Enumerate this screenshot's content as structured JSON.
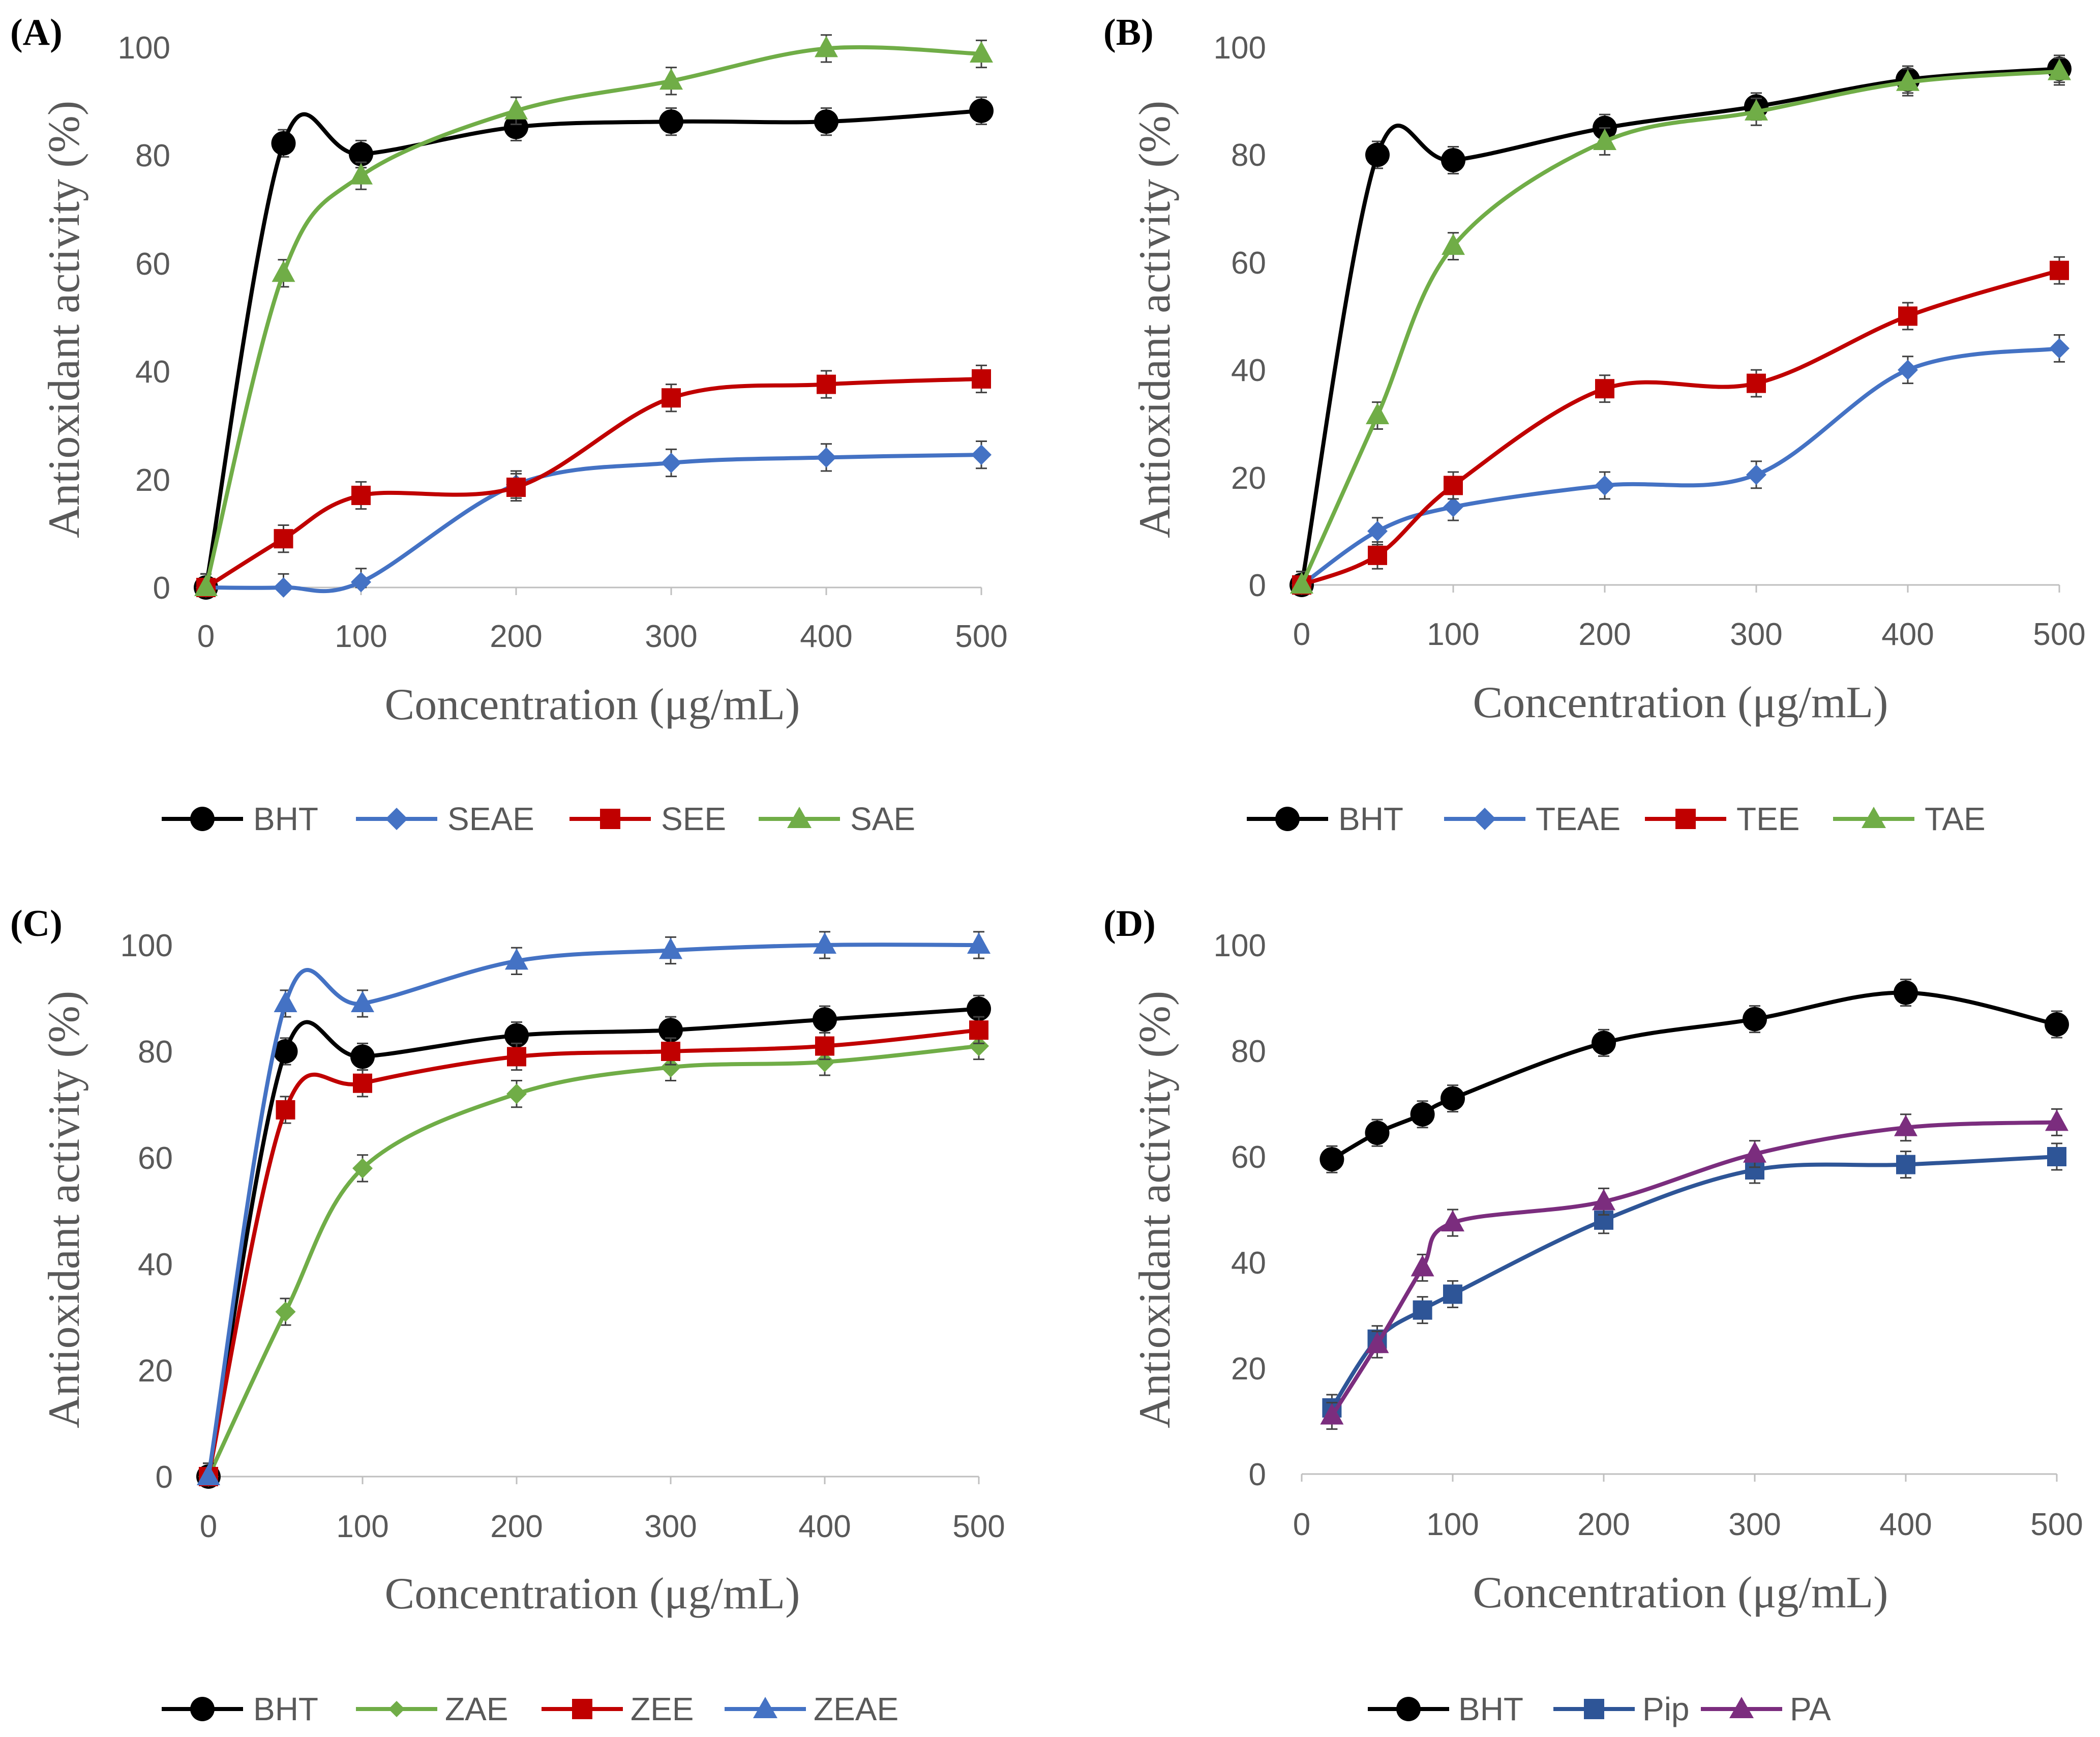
{
  "chart_data": [
    {
      "type": "line",
      "panel_label": "(A)",
      "xlabel": "Concentration (μg/mL)",
      "ylabel": "Antioxidant activity  (%)",
      "xlim": [
        0,
        500
      ],
      "ylim": [
        0,
        100
      ],
      "x_ticks": [
        0,
        100,
        200,
        300,
        400,
        500
      ],
      "y_ticks": [
        0,
        20,
        40,
        60,
        80,
        100
      ],
      "x": [
        0,
        50,
        100,
        200,
        300,
        400,
        500
      ],
      "error_bar_halfwidth": 2.5,
      "series": [
        {
          "name": "BHT",
          "color": "#000000",
          "marker": "circle",
          "values": [
            0,
            82,
            80,
            85,
            86,
            86,
            88
          ]
        },
        {
          "name": "SEAE",
          "color": "#4472c4",
          "marker": "diamond",
          "values": [
            0,
            0,
            1,
            19,
            23,
            24,
            24.5
          ]
        },
        {
          "name": "SEE",
          "color": "#c00000",
          "marker": "square",
          "values": [
            0,
            9,
            17,
            18.5,
            35,
            37.5,
            38.5
          ]
        },
        {
          "name": "SAE",
          "color": "#70ad47",
          "marker": "triangle",
          "values": [
            0,
            58,
            76,
            88,
            93.5,
            99.5,
            98.5
          ]
        }
      ]
    },
    {
      "type": "line",
      "panel_label": "(B)",
      "xlabel": "Concentration (μg/mL)",
      "ylabel": "Antioxidant activity  (%)",
      "xlim": [
        0,
        500
      ],
      "ylim": [
        0,
        100
      ],
      "x_ticks": [
        0,
        100,
        200,
        300,
        400,
        500
      ],
      "y_ticks": [
        0,
        20,
        40,
        60,
        80,
        100
      ],
      "x": [
        0,
        50,
        100,
        200,
        300,
        400,
        500
      ],
      "error_bar_halfwidth": 2.5,
      "series": [
        {
          "name": "BHT",
          "color": "#000000",
          "marker": "circle",
          "values": [
            0,
            80,
            79,
            85,
            89,
            94,
            96
          ]
        },
        {
          "name": "TEAE",
          "color": "#4472c4",
          "marker": "diamond",
          "values": [
            0,
            10,
            14.5,
            18.5,
            20.5,
            40,
            44
          ]
        },
        {
          "name": "TEE",
          "color": "#c00000",
          "marker": "square",
          "values": [
            0,
            5.5,
            18.5,
            36.5,
            37.5,
            50,
            58.5
          ]
        },
        {
          "name": "TAE",
          "color": "#70ad47",
          "marker": "triangle",
          "values": [
            0,
            31.5,
            63,
            82.5,
            88,
            93.5,
            95.5
          ]
        }
      ]
    },
    {
      "type": "line",
      "panel_label": "(C)",
      "xlabel": "Concentration (μg/mL)",
      "ylabel": "Antioxidant activity  (%)",
      "xlim": [
        0,
        500
      ],
      "ylim": [
        0,
        100
      ],
      "x_ticks": [
        0,
        100,
        200,
        300,
        400,
        500
      ],
      "y_ticks": [
        0,
        20,
        40,
        60,
        80,
        100
      ],
      "x": [
        0,
        50,
        100,
        200,
        300,
        400,
        500
      ],
      "error_bar_halfwidth": 2.5,
      "series": [
        {
          "name": "BHT",
          "color": "#000000",
          "marker": "circle",
          "values": [
            0,
            80,
            79,
            83,
            84,
            86,
            88
          ]
        },
        {
          "name": "ZAE",
          "color": "#70ad47",
          "marker": "diamond",
          "values": [
            0,
            31,
            58,
            72,
            77,
            78,
            81
          ]
        },
        {
          "name": "ZEE",
          "color": "#c00000",
          "marker": "square",
          "values": [
            0,
            69,
            74,
            79,
            80,
            81,
            84
          ]
        },
        {
          "name": "ZEAE",
          "color": "#4472c4",
          "marker": "triangle",
          "values": [
            0,
            89,
            89,
            97,
            99,
            100,
            100
          ]
        }
      ]
    },
    {
      "type": "line",
      "panel_label": "(D)",
      "xlabel": "Concentration (μg/mL)",
      "ylabel": "Antioxidant activity  (%)",
      "xlim": [
        0,
        500
      ],
      "ylim": [
        0,
        100
      ],
      "x_ticks": [
        0,
        100,
        200,
        300,
        400,
        500
      ],
      "y_ticks": [
        0,
        20,
        40,
        60,
        80,
        100
      ],
      "x": [
        20,
        50,
        80,
        100,
        200,
        300,
        400,
        500
      ],
      "error_bar_halfwidth": 2.5,
      "series": [
        {
          "name": "BHT",
          "color": "#000000",
          "marker": "circle",
          "values": [
            59.5,
            64.5,
            68,
            71,
            81.5,
            86,
            91,
            85
          ]
        },
        {
          "name": "Pip",
          "color": "#2e5597",
          "marker": "square",
          "values": [
            12.5,
            25.5,
            31,
            34,
            48,
            57.5,
            58.5,
            60
          ]
        },
        {
          "name": "PA",
          "color": "#7b2d7e",
          "marker": "triangle",
          "values": [
            11,
            24.5,
            39,
            47.5,
            51.5,
            60.5,
            65.5,
            66.5
          ]
        }
      ]
    }
  ]
}
